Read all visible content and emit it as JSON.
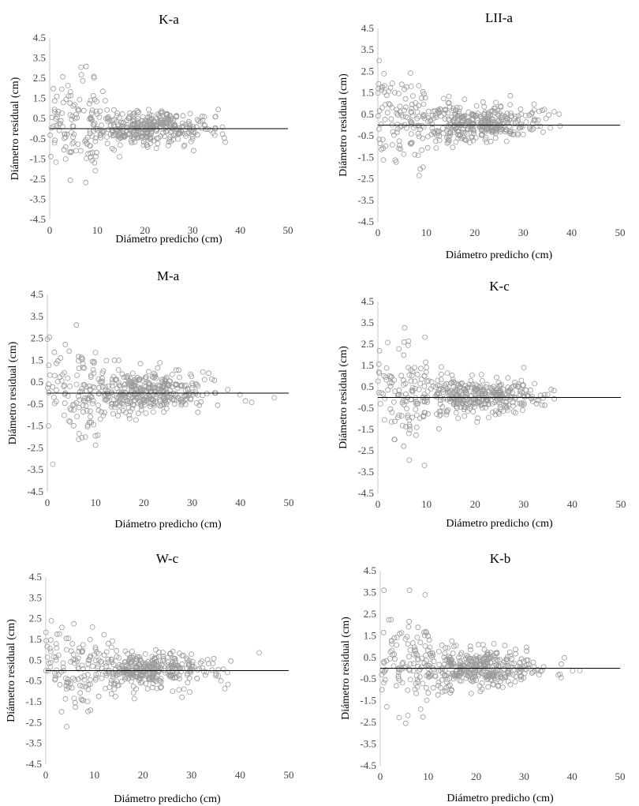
{
  "chart_data": [
    {
      "type": "scatter",
      "title": "K-a",
      "xlabel": "Diámetro predicho (cm)",
      "ylabel": "Diámetro residual  (cm)",
      "xlim": [
        0,
        50
      ],
      "ylim": [
        -4.5,
        4.5
      ],
      "xticks": [
        "0",
        "10",
        "20",
        "30",
        "40",
        "50"
      ],
      "yticks": [
        "4.5",
        "3.5",
        "2.5",
        "1.5",
        "0.5",
        "-0.5",
        "-1.5",
        "-2.5",
        "-3.5",
        "-4.5"
      ],
      "reference_line_y": 0
    },
    {
      "type": "scatter",
      "title": "LII-a",
      "xlabel": "Diámetro predicho (cm)",
      "ylabel": "Diámetro residual  (cm)",
      "xlim": [
        0,
        50
      ],
      "ylim": [
        -4.5,
        4.5
      ],
      "xticks": [
        "0",
        "10",
        "20",
        "30",
        "40",
        "50"
      ],
      "yticks": [
        "4.5",
        "3.5",
        "2.5",
        "1.5",
        "0.5",
        "-0.5",
        "-1.5",
        "-2.5",
        "-3.5",
        "-4.5"
      ],
      "reference_line_y": 0
    },
    {
      "type": "scatter",
      "title": "M-a",
      "xlabel": "Diámetro predicho (cm)",
      "ylabel": "Diámetro residual (cm)",
      "xlim": [
        0,
        50
      ],
      "ylim": [
        -4.5,
        4.5
      ],
      "xticks": [
        "0",
        "10",
        "20",
        "30",
        "40",
        "50"
      ],
      "yticks": [
        "4.5",
        "3.5",
        "2.5",
        "1.5",
        "0.5",
        "-0.5",
        "-1.5",
        "-2.5",
        "-3.5",
        "-4.5"
      ],
      "reference_line_y": 0
    },
    {
      "type": "scatter",
      "title": "K-c",
      "xlabel": "Diámetro predicho (cm)",
      "ylabel": "Diámetro residual (cm)",
      "xlim": [
        0,
        50
      ],
      "ylim": [
        -4.5,
        4.5
      ],
      "xticks": [
        "0",
        "10",
        "20",
        "30",
        "40",
        "50"
      ],
      "yticks": [
        "4.5",
        "3.5",
        "2.5",
        "1.5",
        "0.5",
        "-0.5",
        "-1.5",
        "-2.5",
        "-3.5",
        "-4.5"
      ],
      "reference_line_y": 0
    },
    {
      "type": "scatter",
      "title": "W-c",
      "xlabel": "Diámetro predicho (cm)",
      "ylabel": "Diámetro residual (cm)",
      "xlim": [
        0,
        50
      ],
      "ylim": [
        -4.5,
        4.5
      ],
      "xticks": [
        "0",
        "10",
        "20",
        "30",
        "40",
        "50"
      ],
      "yticks": [
        "4.5",
        "3.5",
        "2.5",
        "1.5",
        "0.5",
        "-0.5",
        "-1.5",
        "-2.5",
        "-3.5",
        "-4.5"
      ],
      "reference_line_y": 0
    },
    {
      "type": "scatter",
      "title": "K-b",
      "xlabel": "Diámetro predicho (cm)",
      "ylabel": "Diámetro residual (cm)",
      "xlim": [
        0,
        50
      ],
      "ylim": [
        -4.5,
        4.5
      ],
      "xticks": [
        "0",
        "10",
        "20",
        "30",
        "40",
        "50"
      ],
      "yticks": [
        "4.5",
        "3.5",
        "2.5",
        "1.5",
        "0.5",
        "-0.5",
        "-1.5",
        "-2.5",
        "-3.5",
        "-4.5"
      ],
      "reference_line_y": 0
    }
  ]
}
